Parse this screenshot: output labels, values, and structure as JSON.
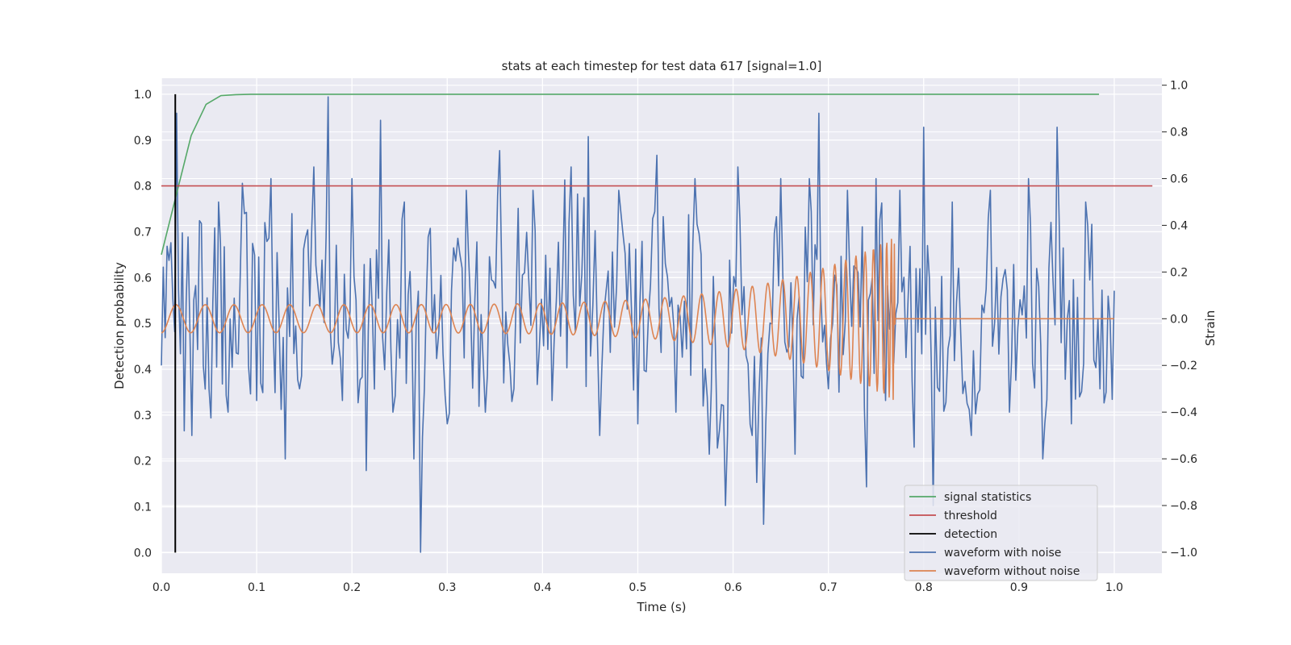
{
  "chart_data": {
    "type": "line",
    "title": "stats at each timestep for test data 617 [signal=1.0]",
    "xlabel": "Time (s)",
    "ylabel": "Detection probability",
    "ylabel_right": "Strain",
    "xlim": [
      0.0,
      1.05
    ],
    "ylim": [
      -0.045,
      1.035
    ],
    "ylim_right": [
      -1.09,
      1.03
    ],
    "xticks": [
      "0.0",
      "0.1",
      "0.2",
      "0.3",
      "0.4",
      "0.5",
      "0.6",
      "0.7",
      "0.8",
      "0.9",
      "1.0"
    ],
    "yticks": [
      "0.0",
      "0.1",
      "0.2",
      "0.3",
      "0.4",
      "0.5",
      "0.6",
      "0.7",
      "0.8",
      "0.9",
      "1.0"
    ],
    "yticks_right": [
      "−1.0",
      "−0.8",
      "−0.6",
      "−0.4",
      "−0.2",
      "0.0",
      "0.2",
      "0.4",
      "0.6",
      "0.8",
      "1.0"
    ],
    "grid": true,
    "legend_position": "lower-right",
    "series": [
      {
        "name": "signal statistics",
        "axis": "left",
        "color": "#55a868",
        "x": [
          0.0,
          0.0156,
          0.0313,
          0.0469,
          0.0625,
          0.0781,
          0.0938,
          0.125,
          0.25,
          0.5,
          0.75,
          0.984
        ],
        "y": [
          0.65,
          0.78,
          0.91,
          0.978,
          0.997,
          0.999,
          1.0,
          1.0,
          1.0,
          1.0,
          1.0,
          1.0
        ]
      },
      {
        "name": "threshold",
        "axis": "left",
        "color": "#c44e52",
        "x": [
          0.0,
          1.04
        ],
        "y": [
          0.8,
          0.8
        ]
      },
      {
        "name": "detection",
        "axis": "left",
        "color": "#000000",
        "x": [
          0.0146,
          0.0146
        ],
        "y": [
          0.0,
          1.0
        ]
      },
      {
        "name": "waveform with noise",
        "axis": "right",
        "color": "#4c72b0",
        "x": [
          0.0,
          0.008,
          0.016,
          0.02,
          0.024,
          0.028,
          0.032,
          0.04,
          0.05,
          0.06,
          0.07,
          0.085,
          0.1,
          0.115,
          0.13,
          0.137,
          0.145,
          0.16,
          0.175,
          0.19,
          0.2,
          0.215,
          0.23,
          0.243,
          0.255,
          0.265,
          0.272,
          0.28,
          0.3,
          0.32,
          0.34,
          0.355,
          0.37,
          0.39,
          0.41,
          0.43,
          0.448,
          0.46,
          0.48,
          0.5,
          0.52,
          0.54,
          0.56,
          0.575,
          0.592,
          0.605,
          0.62,
          0.632,
          0.65,
          0.665,
          0.68,
          0.69,
          0.7,
          0.72,
          0.74,
          0.75,
          0.76,
          0.775,
          0.79,
          0.8,
          0.81,
          0.83,
          0.85,
          0.87,
          0.89,
          0.91,
          0.925,
          0.94,
          0.955,
          0.97,
          0.985,
          1.0
        ],
        "y": [
          -0.2,
          0.25,
          0.88,
          -0.15,
          -0.48,
          0.35,
          -0.5,
          0.42,
          -0.3,
          0.5,
          -0.4,
          0.58,
          -0.35,
          0.6,
          -0.6,
          0.45,
          -0.3,
          0.65,
          0.95,
          -0.35,
          0.6,
          -0.65,
          0.85,
          -0.4,
          0.5,
          -0.6,
          -1.0,
          0.35,
          -0.45,
          0.55,
          -0.4,
          0.72,
          -0.3,
          0.55,
          -0.35,
          0.65,
          0.78,
          -0.5,
          0.55,
          -0.45,
          0.7,
          -0.4,
          0.6,
          -0.58,
          -0.8,
          0.65,
          -0.5,
          -0.88,
          0.6,
          -0.58,
          0.6,
          0.88,
          -0.3,
          0.55,
          -0.72,
          0.6,
          -0.35,
          0.55,
          -0.55,
          0.82,
          -0.8,
          0.5,
          -0.5,
          0.55,
          -0.4,
          0.6,
          -0.6,
          0.82,
          -0.45,
          0.5,
          -0.3,
          0.12
        ]
      },
      {
        "name": "waveform without noise",
        "axis": "right",
        "color": "#dd8452",
        "x": [
          0.0,
          0.77,
          1.0
        ],
        "y": [
          0.0,
          0.0,
          0.0
        ],
        "peak_amplitude": 0.35
      }
    ]
  }
}
